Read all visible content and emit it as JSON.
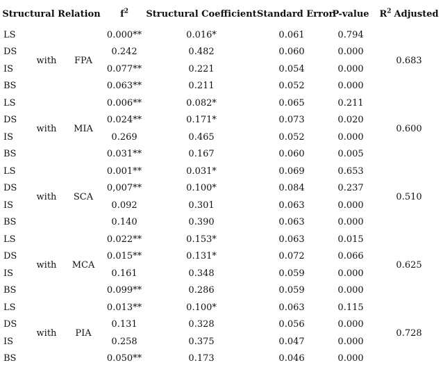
{
  "table": {
    "headers": {
      "structural_relation": "Structural Relation",
      "f2_base": "f",
      "f2_sup": "2",
      "structural_coefficient": "Structural Coefficient",
      "standard_error": "Standard Error",
      "p_value": "P-value",
      "r2_base": "R",
      "r2_sup": "2",
      "r2_suffix": "Adjusted"
    },
    "groups": [
      {
        "connector": "with",
        "target": "FPA",
        "r2_adjusted": "0.683",
        "rows": [
          {
            "source": "LS",
            "f2": "0.000**",
            "coef": "0.016*",
            "se": "0.061",
            "p": "0.794"
          },
          {
            "source": "DS",
            "f2": "0.242",
            "coef": "0.482",
            "se": "0.060",
            "p": "0.000"
          },
          {
            "source": "IS",
            "f2": "0.077**",
            "coef": "0.221",
            "se": "0.054",
            "p": "0.000"
          },
          {
            "source": "BS",
            "f2": "0.063**",
            "coef": "0.211",
            "se": "0.052",
            "p": "0.000"
          }
        ]
      },
      {
        "connector": "with",
        "target": "MIA",
        "r2_adjusted": "0.600",
        "rows": [
          {
            "source": "LS",
            "f2": "0.006**",
            "coef": "0.082*",
            "se": "0.065",
            "p": "0.211"
          },
          {
            "source": "DS",
            "f2": "0.024**",
            "coef": "0.171*",
            "se": "0.073",
            "p": "0.020"
          },
          {
            "source": "IS",
            "f2": "0.269",
            "coef": "0.465",
            "se": "0.052",
            "p": "0.000"
          },
          {
            "source": "BS",
            "f2": "0.031**",
            "coef": "0.167",
            "se": "0.060",
            "p": "0.005"
          }
        ]
      },
      {
        "connector": "with",
        "target": "SCA",
        "r2_adjusted": "0.510",
        "rows": [
          {
            "source": "LS",
            "f2": "0.001**",
            "coef": "0.031*",
            "se": "0.069",
            "p": "0.653"
          },
          {
            "source": "DS",
            "f2": "0,007**",
            "coef": "0.100*",
            "se": "0.084",
            "p": "0.237"
          },
          {
            "source": "IS",
            "f2": "0.092",
            "coef": "0.301",
            "se": "0.063",
            "p": "0.000"
          },
          {
            "source": "BS",
            "f2": "0.140",
            "coef": "0.390",
            "se": "0.063",
            "p": "0.000"
          }
        ]
      },
      {
        "connector": "with",
        "target": "MCA",
        "r2_adjusted": "0.625",
        "rows": [
          {
            "source": "LS",
            "f2": "0.022**",
            "coef": "0.153*",
            "se": "0.063",
            "p": "0.015"
          },
          {
            "source": "DS",
            "f2": "0.015**",
            "coef": "0.131*",
            "se": "0.072",
            "p": "0.066"
          },
          {
            "source": "IS",
            "f2": "0.161",
            "coef": "0.348",
            "se": "0.059",
            "p": "0.000"
          },
          {
            "source": "BS",
            "f2": "0.099**",
            "coef": "0.286",
            "se": "0.059",
            "p": "0.000"
          }
        ]
      },
      {
        "connector": "with",
        "target": "PIA",
        "r2_adjusted": "0.728",
        "rows": [
          {
            "source": "LS",
            "f2": "0.013**",
            "coef": "0.100*",
            "se": "0.063",
            "p": "0.115"
          },
          {
            "source": "DS",
            "f2": "0.131",
            "coef": "0.328",
            "se": "0.056",
            "p": "0.000"
          },
          {
            "source": "IS",
            "f2": "0.258",
            "coef": "0.375",
            "se": "0.047",
            "p": "0.000"
          },
          {
            "source": "BS",
            "f2": "0.050**",
            "coef": "0.173",
            "se": "0.046",
            "p": "0.000"
          }
        ]
      }
    ]
  }
}
